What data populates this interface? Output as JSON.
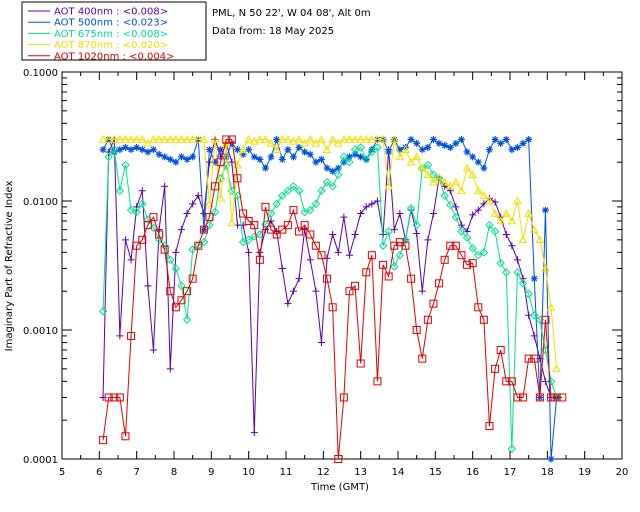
{
  "header": {
    "site": "PML, N 50 22', W 04 08', Alt 0m",
    "date": "Data from: 18 May 2025"
  },
  "legend": [
    {
      "label": "AOT  400nm : <0.008>",
      "color": "#5a00a0"
    },
    {
      "label": "AOT  500nm : <0.023>",
      "color": "#0050e0"
    },
    {
      "label": "AOT  675nm : <0.008>",
      "color": "#00e090"
    },
    {
      "label": "AOT  870nm : <0.020>",
      "color": "#f0e000"
    },
    {
      "label": "AOT 1020nm : <0.004>",
      "color": "#e00000"
    }
  ],
  "chart_data": {
    "type": "line",
    "xlabel": "Time (GMT)",
    "ylabel": "Imaginary Part of Refractive Index",
    "xlim": [
      5,
      20
    ],
    "ylim": [
      0.0001,
      0.1
    ],
    "yscale": "log",
    "xticks": [
      "5",
      "6",
      "7",
      "8",
      "9",
      "10",
      "11",
      "12",
      "13",
      "14",
      "15",
      "16",
      "17",
      "18",
      "19",
      "20"
    ],
    "yticks": [
      "0.0001",
      "0.0010",
      "0.0100",
      "0.1000"
    ],
    "series": [
      {
        "name": "AOT 400nm",
        "color": "#5a00a0",
        "marker": "plus",
        "x": [
          6.1,
          6.25,
          6.4,
          6.55,
          6.7,
          6.85,
          7.0,
          7.15,
          7.3,
          7.45,
          7.6,
          7.75,
          7.9,
          8.05,
          8.2,
          8.35,
          8.5,
          8.65,
          8.8,
          8.95,
          9.1,
          9.25,
          9.4,
          9.55,
          9.7,
          9.85,
          10.0,
          10.15,
          10.3,
          10.45,
          10.6,
          10.75,
          10.9,
          11.05,
          11.2,
          11.35,
          11.5,
          11.65,
          11.8,
          11.95,
          12.1,
          12.25,
          12.4,
          12.55,
          12.7,
          12.85,
          13.0,
          13.15,
          13.3,
          13.45,
          13.6,
          13.75,
          13.9,
          14.05,
          14.2,
          14.35,
          14.5,
          14.65,
          14.8,
          14.95,
          15.1,
          15.25,
          15.4,
          15.55,
          15.7,
          15.85,
          16.0,
          16.15,
          16.3,
          16.45,
          16.6,
          16.75,
          16.9,
          17.05,
          17.2,
          17.35,
          17.5,
          17.65,
          17.8,
          17.95,
          18.1,
          18.25
        ],
        "y": [
          0.0003,
          0.024,
          0.03,
          0.0009,
          0.005,
          0.0035,
          0.009,
          0.012,
          0.0022,
          0.0007,
          0.006,
          0.013,
          0.0005,
          0.004,
          0.006,
          0.008,
          0.0095,
          0.011,
          0.008,
          0.02,
          0.03,
          0.022,
          0.028,
          0.02,
          0.0065,
          0.0065,
          0.004,
          0.00016,
          0.004,
          0.006,
          0.007,
          0.0058,
          0.003,
          0.0016,
          0.002,
          0.0025,
          0.006,
          0.0035,
          0.002,
          0.0008,
          0.0036,
          0.0055,
          0.004,
          0.0075,
          0.0038,
          0.0055,
          0.008,
          0.009,
          0.0095,
          0.01,
          0.0055,
          0.025,
          0.006,
          0.008,
          0.005,
          0.0085,
          0.0056,
          0.002,
          0.005,
          0.008,
          0.015,
          0.013,
          0.012,
          0.009,
          0.0065,
          0.0058,
          0.0078,
          0.0085,
          0.0095,
          0.0105,
          0.0098,
          0.0075,
          0.0055,
          0.0045,
          0.0035,
          0.0025,
          0.0013,
          0.0009,
          0.0006,
          0.0004,
          0.0003,
          0.0003
        ]
      },
      {
        "name": "AOT 500nm",
        "color": "#0050e0",
        "marker": "asterisk",
        "x": [
          6.1,
          6.25,
          6.4,
          6.55,
          6.7,
          6.85,
          7.0,
          7.15,
          7.3,
          7.45,
          7.6,
          7.75,
          7.9,
          8.05,
          8.2,
          8.35,
          8.5,
          8.65,
          8.8,
          8.95,
          9.1,
          9.25,
          9.4,
          9.55,
          9.7,
          9.85,
          10.0,
          10.15,
          10.3,
          10.45,
          10.6,
          10.75,
          10.9,
          11.05,
          11.2,
          11.35,
          11.5,
          11.65,
          11.8,
          11.95,
          12.1,
          12.25,
          12.4,
          12.55,
          12.7,
          12.85,
          13.0,
          13.15,
          13.3,
          13.45,
          13.6,
          13.75,
          13.9,
          14.05,
          14.2,
          14.35,
          14.5,
          14.65,
          14.8,
          14.95,
          15.1,
          15.25,
          15.4,
          15.55,
          15.7,
          15.85,
          16.0,
          16.15,
          16.3,
          16.45,
          16.6,
          16.75,
          16.9,
          17.05,
          17.2,
          17.35,
          17.5,
          17.65,
          17.8,
          17.95,
          18.1,
          18.25
        ],
        "y": [
          0.025,
          0.03,
          0.024,
          0.025,
          0.026,
          0.025,
          0.026,
          0.025,
          0.024,
          0.025,
          0.023,
          0.022,
          0.021,
          0.02,
          0.022,
          0.021,
          0.022,
          0.03,
          0.006,
          0.025,
          0.02,
          0.025,
          0.022,
          0.028,
          0.025,
          0.023,
          0.025,
          0.022,
          0.021,
          0.018,
          0.022,
          0.03,
          0.021,
          0.025,
          0.022,
          0.026,
          0.024,
          0.023,
          0.02,
          0.021,
          0.018,
          0.017,
          0.018,
          0.02,
          0.022,
          0.023,
          0.022,
          0.021,
          0.025,
          0.03,
          0.03,
          0.024,
          0.03,
          0.025,
          0.026,
          0.03,
          0.028,
          0.025,
          0.026,
          0.03,
          0.028,
          0.027,
          0.026,
          0.028,
          0.03,
          0.024,
          0.022,
          0.02,
          0.018,
          0.025,
          0.03,
          0.028,
          0.03,
          0.025,
          0.026,
          0.028,
          0.03,
          0.0025,
          0.0003,
          0.0085,
          0.0001,
          0.0003
        ]
      },
      {
        "name": "AOT 675nm",
        "color": "#00e090",
        "marker": "diamond",
        "x": [
          6.1,
          6.25,
          6.4,
          6.55,
          6.7,
          6.85,
          7.0,
          7.15,
          7.3,
          7.45,
          7.6,
          7.75,
          7.9,
          8.05,
          8.2,
          8.35,
          8.5,
          8.65,
          8.8,
          8.95,
          9.1,
          9.25,
          9.4,
          9.55,
          9.7,
          9.85,
          10.0,
          10.15,
          10.3,
          10.45,
          10.6,
          10.75,
          10.9,
          11.05,
          11.2,
          11.35,
          11.5,
          11.65,
          11.8,
          11.95,
          12.1,
          12.25,
          12.4,
          12.55,
          12.7,
          12.85,
          13.0,
          13.15,
          13.3,
          13.45,
          13.6,
          13.75,
          13.9,
          14.05,
          14.2,
          14.35,
          14.5,
          14.65,
          14.8,
          14.95,
          15.1,
          15.25,
          15.4,
          15.55,
          15.7,
          15.85,
          16.0,
          16.15,
          16.3,
          16.45,
          16.6,
          16.75,
          16.9,
          17.05,
          17.2,
          17.35,
          17.5,
          17.65,
          17.8,
          17.95,
          18.1,
          18.25
        ],
        "y": [
          0.0014,
          0.022,
          0.025,
          0.012,
          0.019,
          0.0085,
          0.0082,
          0.0095,
          0.0072,
          0.0062,
          0.005,
          0.0045,
          0.0035,
          0.003,
          0.0022,
          0.0012,
          0.0042,
          0.0045,
          0.0048,
          0.0065,
          0.0082,
          0.015,
          0.019,
          0.012,
          0.011,
          0.0048,
          0.005,
          0.0053,
          0.0055,
          0.0066,
          0.008,
          0.0095,
          0.011,
          0.012,
          0.013,
          0.012,
          0.0082,
          0.0085,
          0.0095,
          0.012,
          0.014,
          0.013,
          0.016,
          0.022,
          0.02,
          0.025,
          0.026,
          0.021,
          0.024,
          0.026,
          0.0045,
          0.0058,
          0.0031,
          0.0038,
          0.005,
          0.0088,
          0.0065,
          0.018,
          0.019,
          0.016,
          0.015,
          0.011,
          0.0093,
          0.0075,
          0.0058,
          0.0052,
          0.0043,
          0.0038,
          0.004,
          0.0065,
          0.0058,
          0.0033,
          0.0028,
          0.00012,
          0.0028,
          0.0023,
          0.0019,
          0.0013,
          0.0012,
          0.0007,
          0.0004,
          0.0003
        ]
      },
      {
        "name": "AOT 870nm",
        "color": "#f0e000",
        "marker": "triangle",
        "x": [
          6.1,
          6.25,
          6.4,
          6.55,
          6.7,
          6.85,
          7.0,
          7.15,
          7.3,
          7.45,
          7.6,
          7.75,
          7.9,
          8.05,
          8.2,
          8.35,
          8.5,
          8.65,
          8.8,
          8.95,
          9.1,
          9.25,
          9.4,
          9.55,
          9.7,
          9.85,
          10.0,
          10.15,
          10.3,
          10.45,
          10.6,
          10.75,
          10.9,
          11.05,
          11.2,
          11.35,
          11.5,
          11.65,
          11.8,
          11.95,
          12.1,
          12.25,
          12.4,
          12.55,
          12.7,
          12.85,
          13.0,
          13.15,
          13.3,
          13.45,
          13.6,
          13.75,
          13.9,
          14.05,
          14.2,
          14.35,
          14.5,
          14.65,
          14.8,
          14.95,
          15.1,
          15.25,
          15.4,
          15.55,
          15.7,
          15.85,
          16.0,
          16.15,
          16.3,
          16.45,
          16.6,
          16.75,
          16.9,
          17.05,
          17.2,
          17.35,
          17.5,
          17.65,
          17.8,
          17.95,
          18.1,
          18.25
        ],
        "y": [
          0.03,
          0.03,
          0.03,
          0.03,
          0.03,
          0.03,
          0.03,
          0.03,
          0.028,
          0.03,
          0.03,
          0.03,
          0.03,
          0.03,
          0.03,
          0.03,
          0.03,
          0.03,
          0.03,
          0.0095,
          0.03,
          0.0105,
          0.028,
          0.0068,
          0.019,
          0.025,
          0.03,
          0.029,
          0.03,
          0.03,
          0.028,
          0.025,
          0.03,
          0.03,
          0.029,
          0.03,
          0.028,
          0.03,
          0.028,
          0.03,
          0.025,
          0.03,
          0.028,
          0.03,
          0.03,
          0.03,
          0.03,
          0.03,
          0.03,
          0.03,
          0.03,
          0.013,
          0.03,
          0.022,
          0.025,
          0.02,
          0.022,
          0.018,
          0.016,
          0.014,
          0.015,
          0.014,
          0.013,
          0.014,
          0.012,
          0.018,
          0.016,
          0.012,
          0.011,
          0.01,
          0.008,
          0.007,
          0.008,
          0.007,
          0.01,
          0.005,
          0.008,
          0.006,
          0.005,
          0.003,
          0.0015,
          0.0005
        ]
      },
      {
        "name": "AOT 1020nm",
        "color": "#e00000",
        "marker": "square",
        "x": [
          6.1,
          6.25,
          6.4,
          6.55,
          6.7,
          6.85,
          7.0,
          7.15,
          7.3,
          7.45,
          7.6,
          7.75,
          7.9,
          8.05,
          8.2,
          8.35,
          8.5,
          8.65,
          8.8,
          8.95,
          9.1,
          9.25,
          9.4,
          9.55,
          9.7,
          9.85,
          10.0,
          10.15,
          10.3,
          10.45,
          10.6,
          10.75,
          10.9,
          11.05,
          11.2,
          11.35,
          11.5,
          11.65,
          11.8,
          11.95,
          12.1,
          12.25,
          12.4,
          12.55,
          12.7,
          12.85,
          13.0,
          13.15,
          13.3,
          13.45,
          13.6,
          13.75,
          13.9,
          14.05,
          14.2,
          14.35,
          14.5,
          14.65,
          14.8,
          14.95,
          15.1,
          15.25,
          15.4,
          15.55,
          15.7,
          15.85,
          16.0,
          16.15,
          16.3,
          16.45,
          16.6,
          16.75,
          16.9,
          17.05,
          17.2,
          17.35,
          17.5,
          17.65,
          17.8,
          17.95,
          18.1,
          18.25,
          18.4
        ],
        "y": [
          0.00014,
          0.0003,
          0.0003,
          0.0003,
          0.00015,
          0.0009,
          0.0045,
          0.005,
          0.0065,
          0.0075,
          0.0055,
          0.0042,
          0.002,
          0.0015,
          0.0017,
          0.002,
          0.0025,
          0.0045,
          0.006,
          0.0075,
          0.013,
          0.02,
          0.03,
          0.03,
          0.015,
          0.008,
          0.007,
          0.0065,
          0.0035,
          0.009,
          0.006,
          0.0055,
          0.006,
          0.0065,
          0.0085,
          0.0058,
          0.0065,
          0.0055,
          0.0045,
          0.0038,
          0.0025,
          0.0015,
          0.0001,
          0.0003,
          0.002,
          0.0022,
          0.00055,
          0.0028,
          0.0038,
          0.0004,
          0.0032,
          0.0026,
          0.0045,
          0.0048,
          0.0045,
          0.0025,
          0.001,
          0.0006,
          0.0012,
          0.0016,
          0.0023,
          0.0035,
          0.0045,
          0.0045,
          0.0038,
          0.0032,
          0.0033,
          0.0015,
          0.0012,
          0.00018,
          0.0005,
          0.0007,
          0.0004,
          0.0004,
          0.0003,
          0.0003,
          0.0006,
          0.0006,
          0.0003,
          0.0012,
          0.0003,
          0.0003,
          0.0003
        ]
      }
    ]
  }
}
